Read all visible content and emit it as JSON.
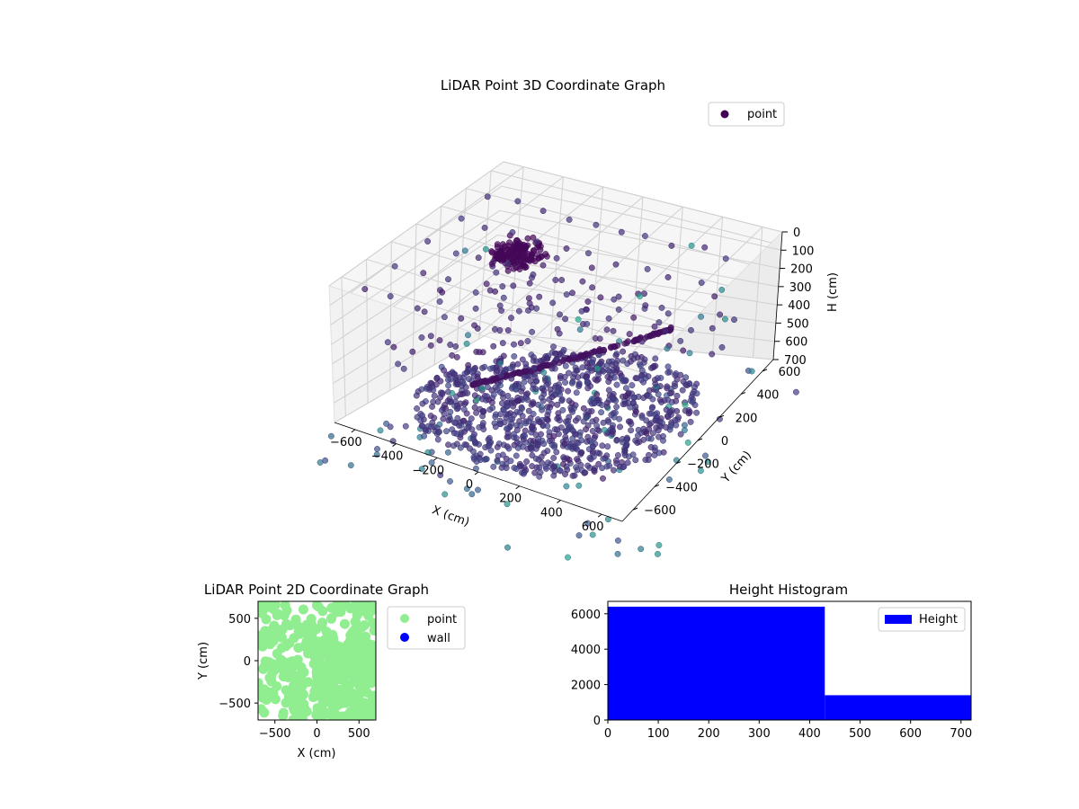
{
  "chart_data": [
    {
      "type": "scatter",
      "projection": "3d",
      "title": "LiDAR Point 3D Coordinate Graph",
      "xlabel": "X (cm)",
      "ylabel": "Y (cm)",
      "zlabel": "H (cm)",
      "xlim": [
        -700,
        700
      ],
      "ylim": [
        -700,
        700
      ],
      "zlim": [
        700,
        0
      ],
      "x_ticks": [
        "−600",
        "−400",
        "−200",
        "0",
        "200",
        "400",
        "600"
      ],
      "y_ticks": [
        "−600",
        "−400",
        "−200",
        "0",
        "200",
        "400",
        "600"
      ],
      "z_ticks": [
        "0",
        "100",
        "200",
        "300",
        "400",
        "500",
        "600",
        "700"
      ],
      "colormap": "viridis",
      "grid": true,
      "legend": {
        "position": "top-right",
        "entries": [
          {
            "label": "point",
            "color": "#440154"
          }
        ]
      },
      "structures": {
        "floor_points": {
          "height": 700,
          "count": 900
        },
        "ceiling_grid": {
          "height": 0,
          "count": 90
        },
        "ceiling_cluster": {
          "height": 160,
          "count": 160
        },
        "ramp": {
          "height_start": 620,
          "height_end": 420,
          "count": 140
        }
      }
    },
    {
      "type": "scatter",
      "title": "LiDAR Point 2D Coordinate Graph",
      "xlabel": "X (cm)",
      "ylabel": "Y (cm)",
      "xlim": [
        -700,
        700
      ],
      "ylim": [
        -700,
        700
      ],
      "x_ticks": [
        "−500",
        "0",
        "500"
      ],
      "y_ticks": [
        "−500",
        "0",
        "500"
      ],
      "legend": {
        "position": "outside-right",
        "entries": [
          {
            "label": "point",
            "color": "#90ee90"
          },
          {
            "label": "wall",
            "color": "#0000ff"
          }
        ]
      }
    },
    {
      "type": "bar",
      "subtype": "histogram",
      "title": "Height Histogram",
      "xlim": [
        0,
        720
      ],
      "ylim": [
        0,
        6700
      ],
      "x_ticks": [
        "0",
        "100",
        "200",
        "300",
        "400",
        "500",
        "600",
        "700"
      ],
      "y_ticks": [
        "0",
        "2000",
        "4000",
        "6000"
      ],
      "bins": [
        {
          "start": 0,
          "end": 430,
          "count": 6400
        },
        {
          "start": 430,
          "end": 720,
          "count": 1400
        }
      ],
      "color": "#0000ff",
      "legend": {
        "position": "top-right",
        "entries": [
          {
            "label": "Height",
            "color": "#0000ff"
          }
        ]
      }
    }
  ]
}
